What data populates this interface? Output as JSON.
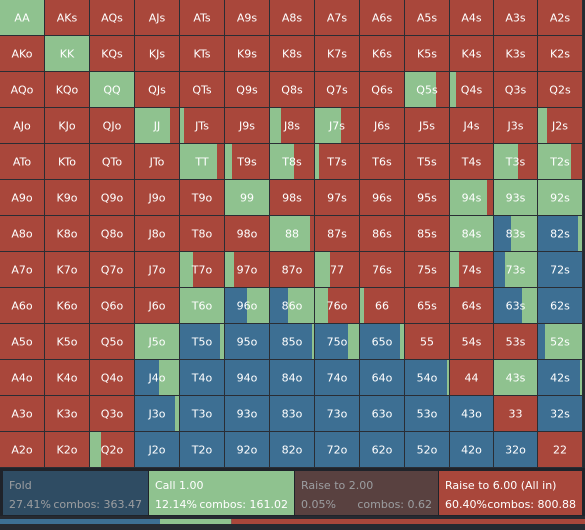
{
  "colors": {
    "fold": "#3d6f93",
    "call": "#8fc28f",
    "raise_small": "#8a5a52",
    "allin": "#a9473b",
    "cell_bg": "#1b1f26",
    "text": "#ffffff"
  },
  "grid": {
    "rows": [
      [
        {
          "label": "AA",
          "mix": {
            "call": 1.0
          }
        },
        {
          "label": "AKs",
          "mix": {
            "allin": 1.0
          }
        },
        {
          "label": "AQs",
          "mix": {
            "allin": 1.0
          }
        },
        {
          "label": "AJs",
          "mix": {
            "allin": 1.0
          }
        },
        {
          "label": "ATs",
          "mix": {
            "allin": 1.0
          }
        },
        {
          "label": "A9s",
          "mix": {
            "allin": 1.0
          }
        },
        {
          "label": "A8s",
          "mix": {
            "allin": 1.0
          }
        },
        {
          "label": "A7s",
          "mix": {
            "allin": 1.0
          }
        },
        {
          "label": "A6s",
          "mix": {
            "allin": 1.0
          }
        },
        {
          "label": "A5s",
          "mix": {
            "allin": 1.0
          }
        },
        {
          "label": "A4s",
          "mix": {
            "allin": 1.0
          }
        },
        {
          "label": "A3s",
          "mix": {
            "allin": 1.0
          }
        },
        {
          "label": "A2s",
          "mix": {
            "allin": 1.0
          }
        }
      ],
      [
        {
          "label": "AKo",
          "mix": {
            "allin": 1.0
          }
        },
        {
          "label": "KK",
          "mix": {
            "call": 1.0
          }
        },
        {
          "label": "KQs",
          "mix": {
            "allin": 1.0
          }
        },
        {
          "label": "KJs",
          "mix": {
            "allin": 1.0
          }
        },
        {
          "label": "KTs",
          "mix": {
            "allin": 1.0
          }
        },
        {
          "label": "K9s",
          "mix": {
            "allin": 1.0
          }
        },
        {
          "label": "K8s",
          "mix": {
            "allin": 1.0
          }
        },
        {
          "label": "K7s",
          "mix": {
            "allin": 1.0
          }
        },
        {
          "label": "K6s",
          "mix": {
            "allin": 1.0
          }
        },
        {
          "label": "K5s",
          "mix": {
            "allin": 1.0
          }
        },
        {
          "label": "K4s",
          "mix": {
            "allin": 1.0
          }
        },
        {
          "label": "K3s",
          "mix": {
            "allin": 1.0
          }
        },
        {
          "label": "K2s",
          "mix": {
            "allin": 1.0
          }
        }
      ],
      [
        {
          "label": "AQo",
          "mix": {
            "allin": 1.0
          }
        },
        {
          "label": "KQo",
          "mix": {
            "allin": 1.0
          }
        },
        {
          "label": "QQ",
          "mix": {
            "call": 1.0
          }
        },
        {
          "label": "QJs",
          "mix": {
            "allin": 1.0
          }
        },
        {
          "label": "QTs",
          "mix": {
            "allin": 1.0
          }
        },
        {
          "label": "Q9s",
          "mix": {
            "allin": 1.0
          }
        },
        {
          "label": "Q8s",
          "mix": {
            "allin": 1.0
          }
        },
        {
          "label": "Q7s",
          "mix": {
            "allin": 1.0
          }
        },
        {
          "label": "Q6s",
          "mix": {
            "allin": 1.0
          }
        },
        {
          "label": "Q5s",
          "mix": {
            "call": 0.7,
            "allin": 0.3
          }
        },
        {
          "label": "Q4s",
          "mix": {
            "call": 0.15,
            "allin": 0.85
          }
        },
        {
          "label": "Q3s",
          "mix": {
            "allin": 1.0
          }
        },
        {
          "label": "Q2s",
          "mix": {
            "allin": 1.0
          }
        }
      ],
      [
        {
          "label": "AJo",
          "mix": {
            "allin": 1.0
          }
        },
        {
          "label": "KJo",
          "mix": {
            "allin": 1.0
          }
        },
        {
          "label": "QJo",
          "mix": {
            "allin": 1.0
          }
        },
        {
          "label": "JJ",
          "mix": {
            "call": 0.8,
            "allin": 0.2
          }
        },
        {
          "label": "JTs",
          "mix": {
            "call": 0.1,
            "allin": 0.9
          }
        },
        {
          "label": "J9s",
          "mix": {
            "allin": 1.0
          }
        },
        {
          "label": "J8s",
          "mix": {
            "call": 0.25,
            "allin": 0.75
          }
        },
        {
          "label": "J7s",
          "mix": {
            "call": 0.6,
            "allin": 0.4
          }
        },
        {
          "label": "J6s",
          "mix": {
            "allin": 1.0
          }
        },
        {
          "label": "J5s",
          "mix": {
            "allin": 1.0
          }
        },
        {
          "label": "J4s",
          "mix": {
            "allin": 1.0
          }
        },
        {
          "label": "J3s",
          "mix": {
            "allin": 1.0
          }
        },
        {
          "label": "J2s",
          "mix": {
            "call": 0.2,
            "allin": 0.8
          }
        }
      ],
      [
        {
          "label": "ATo",
          "mix": {
            "allin": 1.0
          }
        },
        {
          "label": "KTo",
          "mix": {
            "allin": 1.0
          }
        },
        {
          "label": "QTo",
          "mix": {
            "allin": 1.0
          }
        },
        {
          "label": "JTo",
          "mix": {
            "allin": 1.0
          }
        },
        {
          "label": "TT",
          "mix": {
            "call": 0.85,
            "allin": 0.15
          }
        },
        {
          "label": "T9s",
          "mix": {
            "call": 0.15,
            "allin": 0.85
          }
        },
        {
          "label": "T8s",
          "mix": {
            "call": 0.55,
            "allin": 0.45
          }
        },
        {
          "label": "T7s",
          "mix": {
            "call": 0.1,
            "allin": 0.9
          }
        },
        {
          "label": "T6s",
          "mix": {
            "allin": 1.0
          }
        },
        {
          "label": "T5s",
          "mix": {
            "allin": 1.0
          }
        },
        {
          "label": "T4s",
          "mix": {
            "allin": 1.0
          }
        },
        {
          "label": "T3s",
          "mix": {
            "call": 0.55,
            "allin": 0.45
          }
        },
        {
          "label": "T2s",
          "mix": {
            "call": 0.75,
            "allin": 0.25
          }
        }
      ],
      [
        {
          "label": "A9o",
          "mix": {
            "allin": 1.0
          }
        },
        {
          "label": "K9o",
          "mix": {
            "allin": 1.0
          }
        },
        {
          "label": "Q9o",
          "mix": {
            "allin": 1.0
          }
        },
        {
          "label": "J9o",
          "mix": {
            "allin": 1.0
          }
        },
        {
          "label": "T9o",
          "mix": {
            "allin": 1.0
          }
        },
        {
          "label": "99",
          "mix": {
            "call": 1.0
          }
        },
        {
          "label": "98s",
          "mix": {
            "allin": 1.0
          }
        },
        {
          "label": "97s",
          "mix": {
            "allin": 1.0
          }
        },
        {
          "label": "96s",
          "mix": {
            "allin": 1.0
          }
        },
        {
          "label": "95s",
          "mix": {
            "allin": 1.0
          }
        },
        {
          "label": "94s",
          "mix": {
            "call": 0.85,
            "allin": 0.15
          }
        },
        {
          "label": "93s",
          "mix": {
            "call": 1.0
          }
        },
        {
          "label": "92s",
          "mix": {
            "call": 1.0
          }
        }
      ],
      [
        {
          "label": "A8o",
          "mix": {
            "allin": 1.0
          }
        },
        {
          "label": "K8o",
          "mix": {
            "allin": 1.0
          }
        },
        {
          "label": "Q8o",
          "mix": {
            "allin": 1.0
          }
        },
        {
          "label": "J8o",
          "mix": {
            "allin": 1.0
          }
        },
        {
          "label": "T8o",
          "mix": {
            "allin": 1.0
          }
        },
        {
          "label": "98o",
          "mix": {
            "allin": 1.0
          }
        },
        {
          "label": "88",
          "mix": {
            "call": 0.9,
            "allin": 0.1
          }
        },
        {
          "label": "87s",
          "mix": {
            "allin": 1.0
          }
        },
        {
          "label": "86s",
          "mix": {
            "allin": 1.0
          }
        },
        {
          "label": "85s",
          "mix": {
            "allin": 1.0
          }
        },
        {
          "label": "84s",
          "mix": {
            "call": 1.0
          }
        },
        {
          "label": "83s",
          "mix": {
            "call": 0.6,
            "fold": 0.4
          }
        },
        {
          "label": "82s",
          "mix": {
            "call": 0.1,
            "fold": 0.9
          }
        }
      ],
      [
        {
          "label": "A7o",
          "mix": {
            "allin": 1.0
          }
        },
        {
          "label": "K7o",
          "mix": {
            "allin": 1.0
          }
        },
        {
          "label": "Q7o",
          "mix": {
            "allin": 1.0
          }
        },
        {
          "label": "J7o",
          "mix": {
            "allin": 1.0
          }
        },
        {
          "label": "T7o",
          "mix": {
            "call": 0.3,
            "allin": 0.7
          }
        },
        {
          "label": "97o",
          "mix": {
            "call": 0.2,
            "allin": 0.8
          }
        },
        {
          "label": "87o",
          "mix": {
            "allin": 1.0
          }
        },
        {
          "label": "77",
          "mix": {
            "call": 0.35,
            "allin": 0.65
          }
        },
        {
          "label": "76s",
          "mix": {
            "allin": 1.0
          }
        },
        {
          "label": "75s",
          "mix": {
            "allin": 1.0
          }
        },
        {
          "label": "74s",
          "mix": {
            "call": 0.2,
            "allin": 0.8
          }
        },
        {
          "label": "73s",
          "mix": {
            "call": 0.75,
            "fold": 0.25
          }
        },
        {
          "label": "72s",
          "mix": {
            "fold": 1.0
          }
        }
      ],
      [
        {
          "label": "A6o",
          "mix": {
            "allin": 1.0
          }
        },
        {
          "label": "K6o",
          "mix": {
            "allin": 1.0
          }
        },
        {
          "label": "Q6o",
          "mix": {
            "allin": 1.0
          }
        },
        {
          "label": "J6o",
          "mix": {
            "allin": 1.0
          }
        },
        {
          "label": "T6o",
          "mix": {
            "call": 1.0
          }
        },
        {
          "label": "96o",
          "mix": {
            "call": 0.5,
            "fold": 0.5
          }
        },
        {
          "label": "86o",
          "mix": {
            "call": 0.6,
            "fold": 0.4
          }
        },
        {
          "label": "76o",
          "mix": {
            "call": 0.3,
            "allin": 0.7
          }
        },
        {
          "label": "66",
          "mix": {
            "call": 0.1,
            "allin": 0.9
          }
        },
        {
          "label": "65s",
          "mix": {
            "allin": 1.0
          }
        },
        {
          "label": "64s",
          "mix": {
            "allin": 1.0
          }
        },
        {
          "label": "63s",
          "mix": {
            "call": 0.35,
            "fold": 0.65
          }
        },
        {
          "label": "62s",
          "mix": {
            "fold": 1.0
          }
        }
      ],
      [
        {
          "label": "A5o",
          "mix": {
            "allin": 1.0
          }
        },
        {
          "label": "K5o",
          "mix": {
            "allin": 1.0
          }
        },
        {
          "label": "Q5o",
          "mix": {
            "allin": 1.0
          }
        },
        {
          "label": "J5o",
          "mix": {
            "call": 1.0
          }
        },
        {
          "label": "T5o",
          "mix": {
            "call": 0.1,
            "fold": 0.9
          }
        },
        {
          "label": "95o",
          "mix": {
            "fold": 1.0
          }
        },
        {
          "label": "85o",
          "mix": {
            "call": 0.05,
            "fold": 0.95
          }
        },
        {
          "label": "75o",
          "mix": {
            "call": 0.25,
            "fold": 0.75
          }
        },
        {
          "label": "65o",
          "mix": {
            "call": 0.1,
            "fold": 0.9
          }
        },
        {
          "label": "55",
          "mix": {
            "allin": 1.0
          }
        },
        {
          "label": "54s",
          "mix": {
            "allin": 1.0
          }
        },
        {
          "label": "53s",
          "mix": {
            "allin": 1.0
          }
        },
        {
          "label": "52s",
          "mix": {
            "call": 0.85,
            "fold": 0.15
          }
        }
      ],
      [
        {
          "label": "A4o",
          "mix": {
            "allin": 1.0
          }
        },
        {
          "label": "K4o",
          "mix": {
            "allin": 1.0
          }
        },
        {
          "label": "Q4o",
          "mix": {
            "allin": 1.0
          }
        },
        {
          "label": "J4o",
          "mix": {
            "call": 0.45,
            "fold": 0.55
          }
        },
        {
          "label": "T4o",
          "mix": {
            "fold": 1.0
          }
        },
        {
          "label": "94o",
          "mix": {
            "fold": 1.0
          }
        },
        {
          "label": "84o",
          "mix": {
            "fold": 1.0
          }
        },
        {
          "label": "74o",
          "mix": {
            "fold": 1.0
          }
        },
        {
          "label": "64o",
          "mix": {
            "fold": 1.0
          }
        },
        {
          "label": "54o",
          "mix": {
            "call": 0.05,
            "fold": 0.95
          }
        },
        {
          "label": "44",
          "mix": {
            "allin": 1.0
          }
        },
        {
          "label": "43s",
          "mix": {
            "call": 1.0
          }
        },
        {
          "label": "42s",
          "mix": {
            "call": 0.05,
            "fold": 0.95
          }
        }
      ],
      [
        {
          "label": "A3o",
          "mix": {
            "allin": 1.0
          }
        },
        {
          "label": "K3o",
          "mix": {
            "allin": 1.0
          }
        },
        {
          "label": "Q3o",
          "mix": {
            "allin": 1.0
          }
        },
        {
          "label": "J3o",
          "mix": {
            "call": 0.1,
            "fold": 0.9
          }
        },
        {
          "label": "T3o",
          "mix": {
            "fold": 1.0
          }
        },
        {
          "label": "93o",
          "mix": {
            "fold": 1.0
          }
        },
        {
          "label": "83o",
          "mix": {
            "fold": 1.0
          }
        },
        {
          "label": "73o",
          "mix": {
            "fold": 1.0
          }
        },
        {
          "label": "63o",
          "mix": {
            "fold": 1.0
          }
        },
        {
          "label": "53o",
          "mix": {
            "fold": 1.0
          }
        },
        {
          "label": "43o",
          "mix": {
            "fold": 1.0
          }
        },
        {
          "label": "33",
          "mix": {
            "allin": 1.0
          }
        },
        {
          "label": "32s",
          "mix": {
            "fold": 1.0
          }
        }
      ],
      [
        {
          "label": "A2o",
          "mix": {
            "allin": 1.0
          }
        },
        {
          "label": "K2o",
          "mix": {
            "allin": 1.0
          }
        },
        {
          "label": "Q2o",
          "mix": {
            "call": 0.25,
            "allin": 0.75
          }
        },
        {
          "label": "J2o",
          "mix": {
            "fold": 1.0
          }
        },
        {
          "label": "T2o",
          "mix": {
            "fold": 1.0
          }
        },
        {
          "label": "92o",
          "mix": {
            "fold": 1.0
          }
        },
        {
          "label": "82o",
          "mix": {
            "fold": 1.0
          }
        },
        {
          "label": "72o",
          "mix": {
            "fold": 1.0
          }
        },
        {
          "label": "62o",
          "mix": {
            "fold": 1.0
          }
        },
        {
          "label": "52o",
          "mix": {
            "fold": 1.0
          }
        },
        {
          "label": "42o",
          "mix": {
            "fold": 1.0
          }
        },
        {
          "label": "32o",
          "mix": {
            "fold": 1.0
          }
        },
        {
          "label": "22",
          "mix": {
            "allin": 1.0
          }
        }
      ]
    ]
  },
  "actions": [
    {
      "key": "fold",
      "name": "Fold",
      "pct": "27.41%",
      "combos": "combos: 363.47",
      "dim": true
    },
    {
      "key": "call",
      "name": "Call 1.00",
      "pct": "12.14%",
      "combos": "combos: 161.02",
      "dim": false
    },
    {
      "key": "raise_small",
      "name": "Raise to 2.00",
      "pct": "0.05%",
      "combos": "combos: 0.62",
      "dim": true
    },
    {
      "key": "allin",
      "name": "Raise to 6.00 (All in)",
      "pct": "60.40%",
      "combos": "combos: 800.88",
      "dim": false
    }
  ],
  "summary": {
    "fold": 0.2741,
    "call": 0.1214,
    "raise_small": 0.0005,
    "allin": 0.604
  }
}
